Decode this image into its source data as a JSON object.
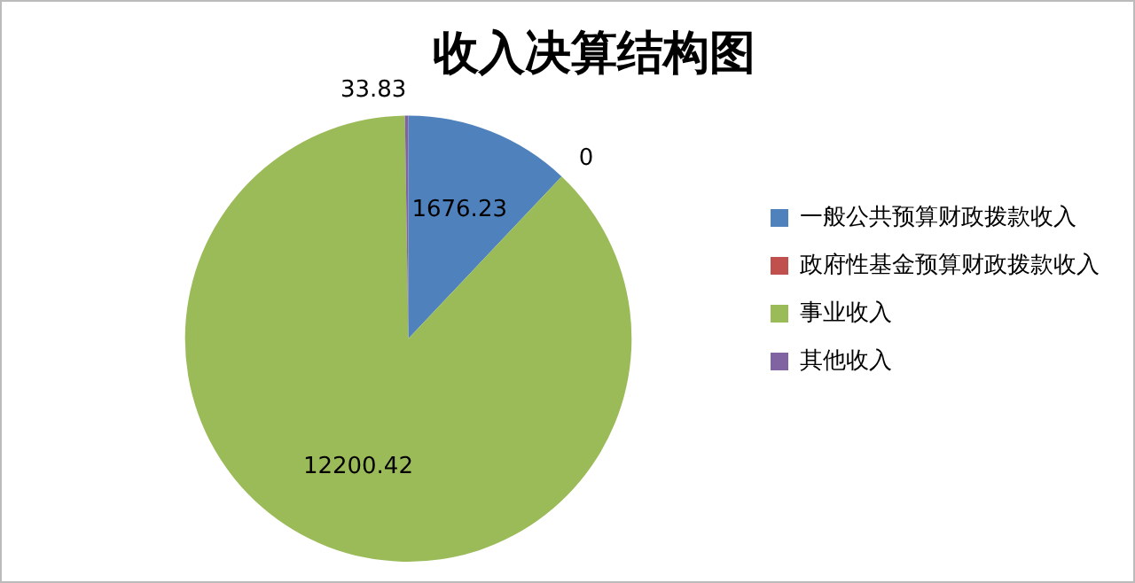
{
  "chart_data": {
    "type": "pie",
    "title": "收入决算结构图",
    "categories": [
      "一般公共预算财政拨款收入",
      "政府性基金预算财政拨款收入",
      "事业收入",
      "其他收入"
    ],
    "values": [
      1676.23,
      0,
      12200.42,
      33.83
    ],
    "colors": [
      "#4f81bd",
      "#c0504d",
      "#9bbb59",
      "#8064a2"
    ],
    "value_labels": [
      "1676.23",
      "0",
      "12200.42",
      "33.83"
    ],
    "legend": "right"
  }
}
